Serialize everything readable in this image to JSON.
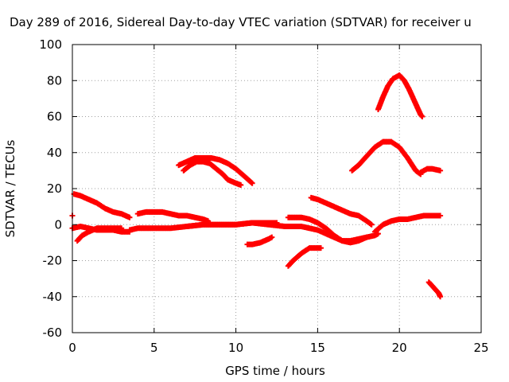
{
  "chart_data": {
    "type": "scatter",
    "title": "Day 289 of 2016, Sidereal Day-to-day VTEC variation (SDTVAR) for receiver u",
    "xlabel": "GPS time / hours",
    "ylabel": "SDTVAR / TECUs",
    "xlim": [
      0,
      25
    ],
    "ylim": [
      -60,
      100
    ],
    "xticks": [
      "0",
      "5",
      "10",
      "15",
      "20",
      "25"
    ],
    "yticks": [
      "-60",
      "-40",
      "-20",
      "0",
      "20",
      "40",
      "60",
      "80",
      "100"
    ],
    "grid": true,
    "marker": "+",
    "color": "#ff0000",
    "series": [
      {
        "values": [
          [
            0.1,
            17
          ],
          [
            0.5,
            16
          ],
          [
            1.0,
            14
          ],
          [
            1.5,
            12
          ],
          [
            2.0,
            9
          ],
          [
            2.5,
            7
          ],
          [
            3.0,
            6
          ],
          [
            3.5,
            4
          ]
        ]
      },
      {
        "values": [
          [
            0.0,
            5
          ]
        ]
      },
      {
        "values": [
          [
            0.0,
            -2
          ],
          [
            0.5,
            -1
          ],
          [
            1.0,
            -2
          ],
          [
            1.5,
            -3
          ],
          [
            2.0,
            -3
          ],
          [
            2.5,
            -3
          ],
          [
            3.0,
            -4
          ],
          [
            3.5,
            -4
          ]
        ]
      },
      {
        "values": [
          [
            0.3,
            -9
          ],
          [
            0.6,
            -6
          ],
          [
            1.0,
            -4
          ],
          [
            1.5,
            -2
          ],
          [
            2.0,
            -2
          ],
          [
            2.5,
            -2
          ],
          [
            3.0,
            -2
          ]
        ]
      },
      {
        "values": [
          [
            4.0,
            6
          ],
          [
            4.5,
            7
          ],
          [
            5.0,
            7
          ],
          [
            5.5,
            7
          ],
          [
            6.0,
            6
          ],
          [
            6.5,
            5
          ],
          [
            7.0,
            5
          ],
          [
            7.5,
            4
          ],
          [
            8.0,
            3
          ],
          [
            8.3,
            2
          ]
        ]
      },
      {
        "values": [
          [
            3.5,
            -3
          ],
          [
            4.0,
            -2
          ],
          [
            5.0,
            -2
          ],
          [
            6.0,
            -2
          ],
          [
            7.0,
            -1
          ],
          [
            8.0,
            0
          ],
          [
            9.0,
            0
          ],
          [
            10.0,
            0
          ],
          [
            11.0,
            1
          ],
          [
            12.0,
            0
          ],
          [
            13.0,
            -1
          ],
          [
            14.0,
            -1
          ],
          [
            15.0,
            -3
          ],
          [
            15.5,
            -5
          ],
          [
            16.0,
            -7
          ],
          [
            16.5,
            -9
          ],
          [
            17.0,
            -9
          ],
          [
            17.5,
            -8
          ],
          [
            18.0,
            -7
          ],
          [
            18.5,
            -6
          ],
          [
            18.7,
            -5
          ]
        ]
      },
      {
        "values": [
          [
            7.0,
            -1
          ],
          [
            8.0,
            0
          ],
          [
            9.0,
            0
          ],
          [
            10.0,
            0
          ],
          [
            11.0,
            1
          ],
          [
            12.0,
            1
          ],
          [
            12.5,
            1
          ]
        ]
      },
      {
        "values": [
          [
            6.5,
            33
          ],
          [
            7.0,
            35
          ],
          [
            7.5,
            37
          ],
          [
            8.0,
            37
          ],
          [
            8.5,
            37
          ],
          [
            9.0,
            36
          ],
          [
            9.5,
            34
          ],
          [
            10.0,
            31
          ],
          [
            10.5,
            27
          ],
          [
            11.0,
            23
          ]
        ]
      },
      {
        "values": [
          [
            6.8,
            30
          ],
          [
            7.2,
            33
          ],
          [
            7.6,
            35
          ],
          [
            8.0,
            35
          ],
          [
            8.4,
            34
          ],
          [
            8.8,
            31
          ],
          [
            9.2,
            28
          ],
          [
            9.5,
            25
          ],
          [
            10.0,
            23
          ],
          [
            10.3,
            22
          ]
        ]
      },
      {
        "values": [
          [
            10.7,
            -11
          ],
          [
            11.0,
            -11
          ],
          [
            11.5,
            -10
          ],
          [
            12.0,
            -8
          ],
          [
            12.2,
            -7
          ]
        ]
      },
      {
        "values": [
          [
            13.2,
            -23
          ],
          [
            13.5,
            -20
          ],
          [
            14.0,
            -16
          ],
          [
            14.5,
            -13
          ],
          [
            15.0,
            -13
          ],
          [
            15.2,
            -13
          ]
        ]
      },
      {
        "values": [
          [
            13.2,
            4
          ],
          [
            14.0,
            4
          ],
          [
            14.5,
            3
          ],
          [
            15.0,
            1
          ],
          [
            15.5,
            -2
          ],
          [
            16.0,
            -6
          ],
          [
            16.5,
            -9
          ],
          [
            17.0,
            -10
          ],
          [
            17.5,
            -9
          ],
          [
            18.0,
            -7
          ]
        ]
      },
      {
        "values": [
          [
            14.6,
            15
          ],
          [
            15.0,
            14
          ],
          [
            15.5,
            12
          ],
          [
            16.0,
            10
          ],
          [
            16.5,
            8
          ],
          [
            17.0,
            6
          ],
          [
            17.5,
            5
          ],
          [
            18.0,
            2
          ],
          [
            18.3,
            0
          ]
        ]
      },
      {
        "values": [
          [
            17.1,
            30
          ],
          [
            17.5,
            33
          ],
          [
            18.0,
            38
          ],
          [
            18.5,
            43
          ],
          [
            19.0,
            46
          ],
          [
            19.5,
            46
          ],
          [
            20.0,
            43
          ],
          [
            20.5,
            37
          ],
          [
            21.0,
            30
          ],
          [
            21.3,
            28
          ]
        ]
      },
      {
        "values": [
          [
            18.7,
            64
          ],
          [
            19.0,
            71
          ],
          [
            19.3,
            77
          ],
          [
            19.6,
            81
          ],
          [
            20.0,
            83
          ],
          [
            20.3,
            80
          ],
          [
            20.6,
            75
          ],
          [
            21.0,
            67
          ],
          [
            21.3,
            61
          ],
          [
            21.4,
            60
          ]
        ]
      },
      {
        "values": [
          [
            18.5,
            -4
          ],
          [
            19.0,
            0
          ],
          [
            19.5,
            2
          ],
          [
            20.0,
            3
          ],
          [
            20.5,
            3
          ],
          [
            21.0,
            4
          ],
          [
            21.5,
            5
          ],
          [
            22.0,
            5
          ],
          [
            22.5,
            5
          ]
        ]
      },
      {
        "values": [
          [
            21.3,
            29
          ],
          [
            21.7,
            31
          ],
          [
            22.0,
            31
          ],
          [
            22.5,
            30
          ]
        ]
      },
      {
        "values": [
          [
            21.8,
            -32
          ],
          [
            22.1,
            -35
          ],
          [
            22.4,
            -38
          ],
          [
            22.5,
            -40
          ]
        ]
      }
    ]
  }
}
